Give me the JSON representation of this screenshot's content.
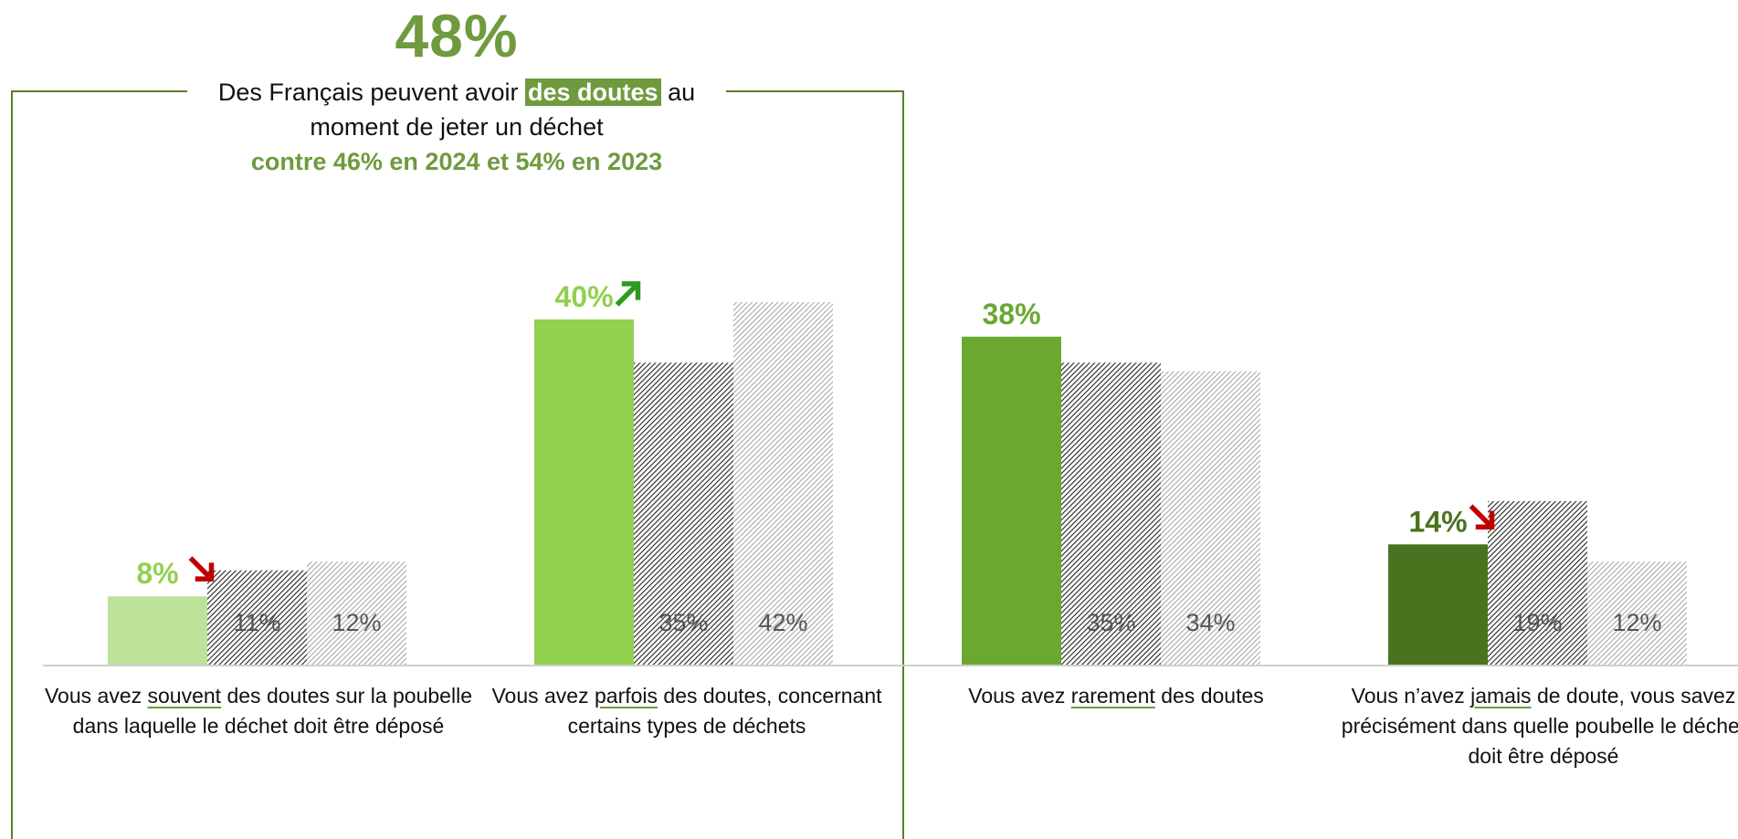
{
  "headline": {
    "value": "48%",
    "line1_pre": "Des Français peuvent avoir ",
    "line1_hl": "des doutes",
    "line1_post": " au",
    "line2": "moment de jeter un déchet",
    "line3": "contre 46% en 2024 et 54% en 2023"
  },
  "colors": {
    "accent": "#6f9a3e",
    "up_arrow": "#2e9a1f",
    "down_arrow": "#c00000",
    "cat_colors": [
      "#bde39a",
      "#92d050",
      "#6aa832",
      "#4a7320"
    ],
    "label_colors": [
      "#92d050",
      "#92d050",
      "#6aa832",
      "#4a7320"
    ]
  },
  "chart_data": {
    "type": "bar",
    "categories": [
      {
        "pre": "Vous avez ",
        "u": "souvent",
        "post": " des doutes sur la poubelle dans laquelle le déchet doit être déposé"
      },
      {
        "pre": "Vous avez ",
        "u": "parfois",
        "post": " des doutes, concernant certains types de déchets"
      },
      {
        "pre": "Vous avez ",
        "u": "rarement",
        "post": " des doutes"
      },
      {
        "pre": "Vous n’avez ",
        "u": "jamais",
        "post": " de doute, vous savez précisément dans quelle poubelle le déchet doit être déposé"
      }
    ],
    "series": [
      {
        "values": [
          8,
          40,
          38,
          14
        ],
        "labels": [
          "8%",
          "40%",
          "38%",
          "14%"
        ],
        "trend": [
          "down",
          "up",
          "none",
          "down"
        ]
      },
      {
        "values": [
          11,
          35,
          35,
          19
        ],
        "labels": [
          "11%",
          "35%",
          "35%",
          "19%"
        ]
      },
      {
        "values": [
          12,
          42,
          34,
          12
        ],
        "labels": [
          "12%",
          "42%",
          "34%",
          "12%"
        ]
      }
    ],
    "ylim": [
      0,
      48
    ]
  }
}
